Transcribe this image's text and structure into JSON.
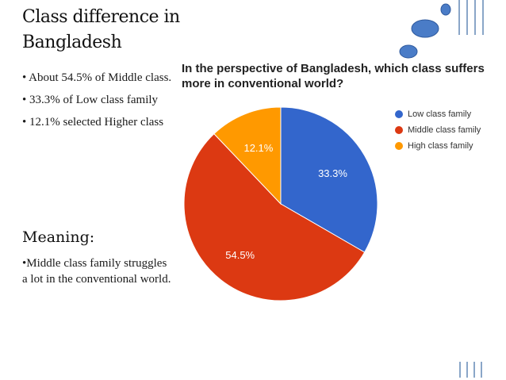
{
  "slide": {
    "title": "Class difference in Bangladesh",
    "bullets": [
      "• About 54.5% of Middle class.",
      "• 33.3% of Low class family",
      "• 12.1% selected Higher class"
    ],
    "meaning_title": "Meaning:",
    "meaning_text": "•Middle class family struggles a lot in the conventional world."
  },
  "colors": {
    "low": "#3366cc",
    "middle": "#dc3912",
    "high": "#ff9900",
    "decor_blue": "#4a7cc7",
    "decor_lines": "#8aa6c8"
  },
  "chart_data": {
    "type": "pie",
    "title": "In the perspective of Bangladesh, which class suffers more in conventional world?",
    "categories": [
      "Low class family",
      "Middle class family",
      "High class family"
    ],
    "values": [
      33.3,
      54.5,
      12.1
    ],
    "labels": [
      "33.3%",
      "54.5%",
      "12.1%"
    ],
    "legend_position": "right"
  }
}
